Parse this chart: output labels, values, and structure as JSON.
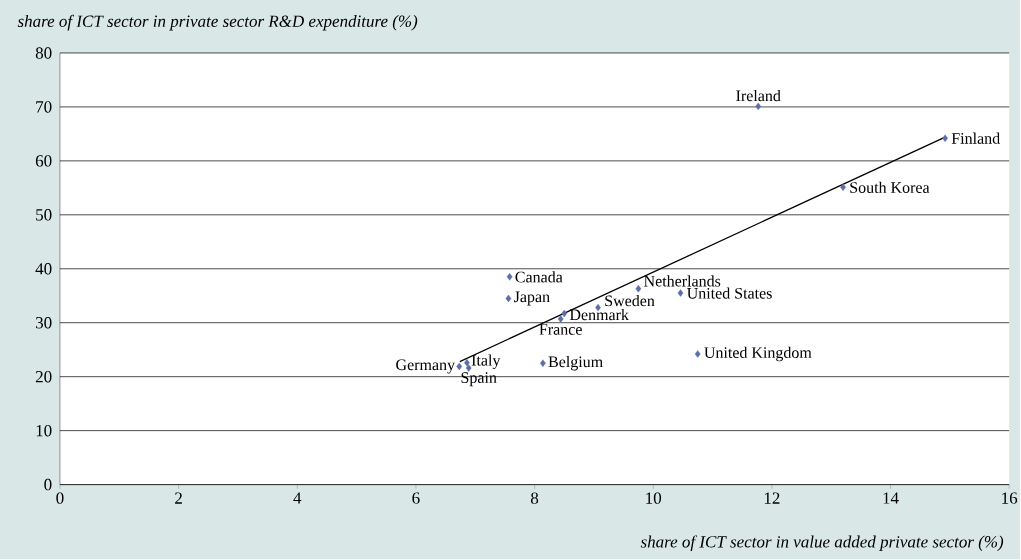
{
  "chart_data": {
    "type": "scatter",
    "xlabel": "share of ICT sector in value added private sector (%)",
    "ylabel": "share of ICT sector in private sector R&D expenditure (%)",
    "xlim": [
      0,
      16
    ],
    "xticks": [
      0,
      2,
      4,
      6,
      8,
      10,
      12,
      14,
      16
    ],
    "ylim": [
      0,
      80
    ],
    "yticks": [
      0,
      10,
      20,
      30,
      40,
      50,
      60,
      70,
      80
    ],
    "grid": "y",
    "marker": "diamond",
    "series": [
      {
        "color": "#5a6ea8",
        "x": [
          11.77,
          14.92,
          13.2,
          7.58,
          7.56,
          9.75,
          10.46,
          9.07,
          8.5,
          8.44,
          10.75,
          8.14,
          6.86,
          6.89,
          6.73
        ],
        "values": [
          70.1,
          64.2,
          55.1,
          38.5,
          34.5,
          36.3,
          35.5,
          32.8,
          31.7,
          30.7,
          24.2,
          22.5,
          22.6,
          21.6,
          21.9
        ]
      },
      {
        "type": "line",
        "marker": "none",
        "color": "#000000",
        "x": [
          6.74,
          14.92
        ],
        "values": [
          22.8,
          64.4
        ]
      }
    ],
    "annotations": [
      {
        "text": "Ireland",
        "x": 11.77,
        "y": 70.1
      },
      {
        "text": "Finland",
        "x": 14.92,
        "y": 64.2
      },
      {
        "text": "South Korea",
        "x": 13.2,
        "y": 55.1
      },
      {
        "text": "Canada",
        "x": 7.58,
        "y": 38.5
      },
      {
        "text": "Japan",
        "x": 7.56,
        "y": 34.5
      },
      {
        "text": "Netherlands",
        "x": 9.75,
        "y": 36.3
      },
      {
        "text": "United States",
        "x": 10.46,
        "y": 35.5
      },
      {
        "text": "Sweden",
        "x": 9.07,
        "y": 32.8
      },
      {
        "text": "Denmark",
        "x": 8.5,
        "y": 31.7
      },
      {
        "text": "France",
        "x": 8.44,
        "y": 30.7
      },
      {
        "text": "United Kingdom",
        "x": 10.75,
        "y": 24.2
      },
      {
        "text": "Belgium",
        "x": 8.14,
        "y": 22.5
      },
      {
        "text": "Italy",
        "x": 6.86,
        "y": 22.6
      },
      {
        "text": "Spain",
        "x": 6.89,
        "y": 21.6
      },
      {
        "text": "Germany",
        "x": 6.73,
        "y": 21.9
      }
    ]
  }
}
